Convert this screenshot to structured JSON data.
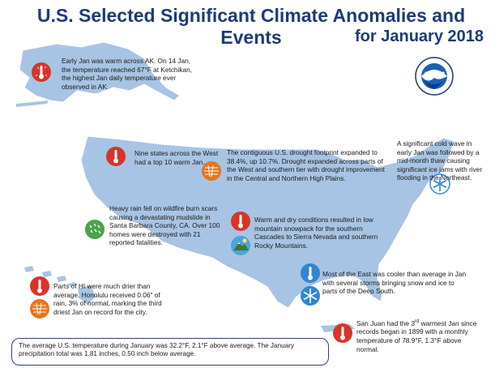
{
  "title": {
    "line1": "U.S. Selected Significant Climate Anomalies and Events",
    "line2": "for January 2018"
  },
  "logo": {
    "text": "NOAA",
    "icon": "noaa-logo"
  },
  "colors": {
    "title": "#1f3a7a",
    "map": "#a8c4e4",
    "map_border": "#ffffff",
    "warm_icon": "#d8342a",
    "cold_icon": "#2f86d3",
    "drought_icon": "#e8741e",
    "wet_icon": "#4aa44a"
  },
  "annotations": {
    "ak": "Early Jan was warm across AK. On 14 Jan, the temperature reached 67°F at Ketchikan, the highest Jan daily temperature ever observed in AK.",
    "west_warm": "Nine states across the West had a top 10 warm Jan.",
    "drought": "The contiguous U.S. drought footprint expanded to 38.4%, up 10.7%. Drought expanded across parts of the West and southern tier with drought improvement in the Central and Northern High Plains.",
    "cold_wave": "A significant cold wave in early Jan was followed by a mid-month thaw causing significant ice jams with river flooding in the Northeast.",
    "mudslide": "Heavy rain fell on wildfire burn scars causing a devastating mudslide in Santa Barbara County, CA. Over 100 homes were destroyed with 21 reported fatalities.",
    "snowpack": "Warm and dry conditions resulted in low mountain snowpack for the southern Cascades to Sierra Nevada and southern Rocky Mountains.",
    "east_cool": "Most of the East was cooler than average in Jan with several storms bringing snow and ice to parts of the Deep South.",
    "hawaii": "Parts of HI were much drier than average. Honolulu received 0.06\" of rain, 3% of normal, marking the third driest Jan on record for the city.",
    "san_juan_pre": "San Juan had the 3",
    "san_juan_sup": "rd",
    "san_juan_post": " warmest Jan since records began in 1899 with a monthly temperature of 78.9°F, 1.3°F above normal."
  },
  "footer": "The average U.S. temperature during January was 32.2°F, 2.1°F above average. The January precipitation total was 1.81 inches, 0.50 inch below average."
}
